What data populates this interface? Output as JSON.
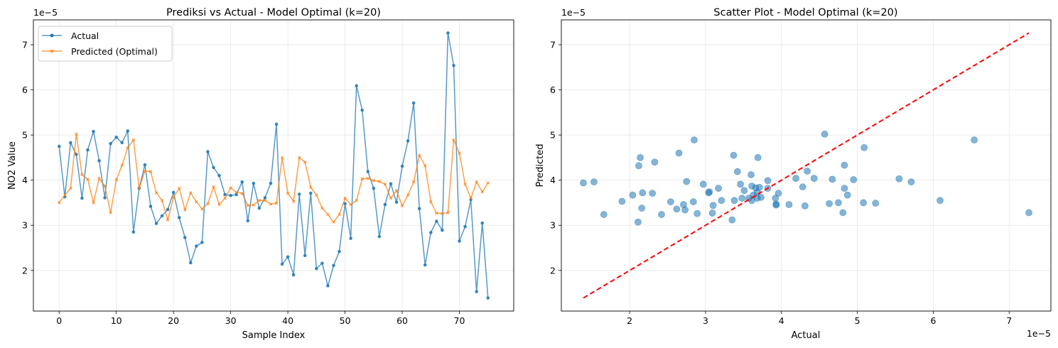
{
  "chart_data": [
    {
      "type": "line",
      "title": "Prediksi vs Actual - Model Optimal (k=20)",
      "xlabel": "Sample Index",
      "ylabel": "NO2 Value",
      "y_offset_label": "1e−5",
      "xlim": [
        -4.5,
        79.5
      ],
      "ylim": [
        1.1,
        7.55
      ],
      "x_ticks": [
        0,
        10,
        20,
        30,
        40,
        50,
        60,
        70
      ],
      "y_ticks": [
        2,
        3,
        4,
        5,
        6,
        7
      ],
      "grid": true,
      "legend_position": "upper-left",
      "series": [
        {
          "name": "Actual",
          "color": "#1f77b4",
          "marker": "circle",
          "values": [
            4.75,
            3.63,
            4.83,
            4.57,
            3.6,
            4.67,
            5.08,
            4.43,
            3.61,
            4.81,
            4.95,
            4.83,
            5.09,
            2.85,
            3.82,
            4.34,
            3.42,
            3.04,
            3.21,
            3.35,
            3.73,
            3.17,
            2.73,
            2.17,
            2.54,
            2.62,
            4.63,
            4.28,
            4.1,
            3.68,
            3.66,
            3.68,
            3.96,
            3.1,
            3.93,
            3.38,
            3.61,
            3.93,
            5.24,
            2.14,
            2.3,
            1.9,
            3.69,
            2.33,
            3.71,
            2.04,
            2.16,
            1.66,
            2.11,
            2.42,
            3.48,
            2.71,
            6.09,
            5.55,
            4.19,
            3.82,
            2.75,
            3.46,
            3.92,
            3.51,
            4.31,
            4.87,
            5.71,
            3.37,
            2.12,
            2.84,
            3.09,
            2.89,
            7.26,
            6.54,
            2.65,
            2.97,
            3.57,
            1.53,
            3.05,
            1.39
          ]
        },
        {
          "name": "Predicted (Optimal)",
          "color": "#ff7f0e",
          "marker": "x",
          "values": [
            3.5,
            3.67,
            3.82,
            5.02,
            4.12,
            4.02,
            3.5,
            4.04,
            3.87,
            3.28,
            4.01,
            4.33,
            4.72,
            4.89,
            3.82,
            4.2,
            4.19,
            3.72,
            3.55,
            3.12,
            3.62,
            3.82,
            3.34,
            3.72,
            3.52,
            3.36,
            3.48,
            3.85,
            3.46,
            3.6,
            3.83,
            3.73,
            3.71,
            3.44,
            3.45,
            3.55,
            3.55,
            3.47,
            3.49,
            4.5,
            3.71,
            3.53,
            4.5,
            4.4,
            3.84,
            3.67,
            3.38,
            3.24,
            3.07,
            3.24,
            3.6,
            3.46,
            3.55,
            4.03,
            4.04,
            3.99,
            3.97,
            3.91,
            3.6,
            3.77,
            3.43,
            3.67,
            3.96,
            4.55,
            4.32,
            3.52,
            3.27,
            3.26,
            3.28,
            4.89,
            4.6,
            3.91,
            3.6,
            3.96,
            3.74,
            3.94
          ]
        }
      ]
    },
    {
      "type": "scatter",
      "title": "Scatter Plot - Model Optimal (k=20)",
      "xlabel": "Actual",
      "ylabel": "Predicted",
      "x_offset_label": "1e−5",
      "y_offset_label": "1e−5",
      "xlim": [
        1.1,
        7.55
      ],
      "ylim": [
        1.1,
        7.55
      ],
      "x_ticks": [
        2,
        3,
        4,
        5,
        6,
        7
      ],
      "y_ticks": [
        2,
        3,
        4,
        5,
        6,
        7
      ],
      "grid": true,
      "point_color": "#1f77b4",
      "reference_line": {
        "from": [
          1.39,
          1.39
        ],
        "to": [
          7.26,
          7.26
        ],
        "color": "#ff0000",
        "style": "dashed"
      }
    }
  ]
}
